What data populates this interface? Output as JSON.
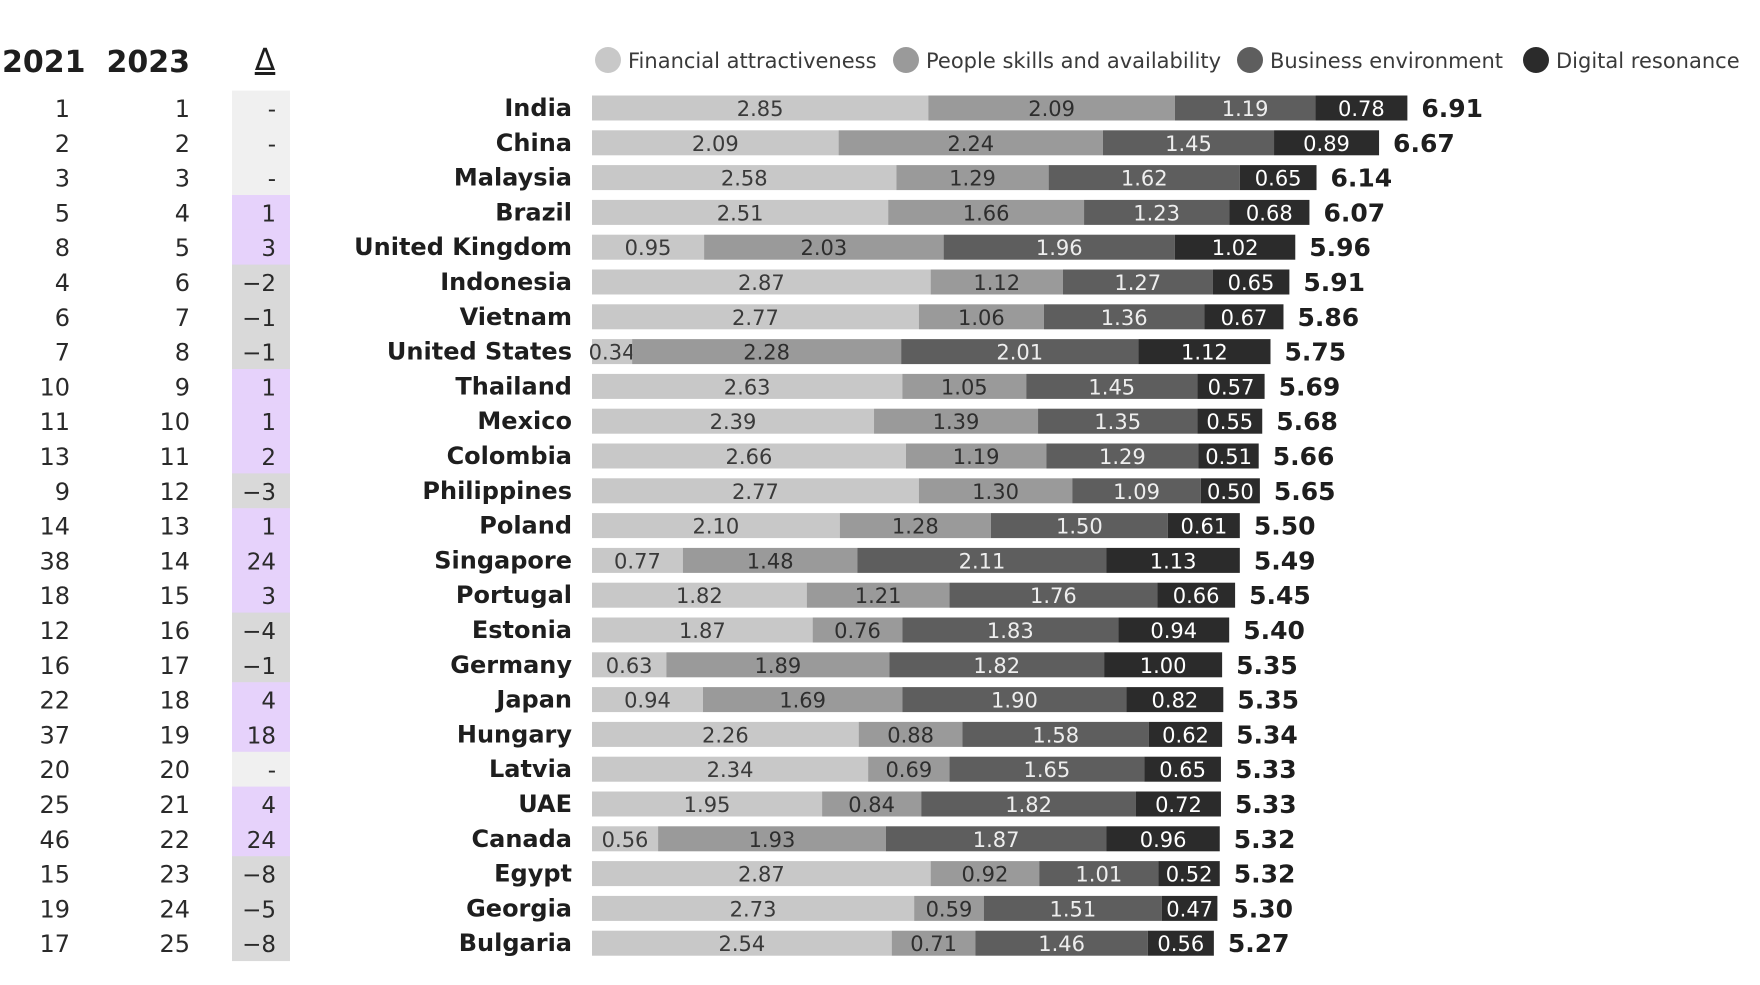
{
  "chart_data": {
    "type": "bar",
    "orientation": "horizontal",
    "stacked": true,
    "grid": false,
    "legend_position": "top",
    "column_headers": {
      "rank_2021": "2021",
      "rank_2023": "2023",
      "delta": "Δ"
    },
    "series": [
      {
        "name": "Financial attractiveness",
        "color": "#c8c8c8",
        "text_color": "#3a3a3a",
        "values": [
          2.85,
          2.09,
          2.58,
          2.51,
          0.95,
          2.87,
          2.77,
          0.34,
          2.63,
          2.39,
          2.66,
          2.77,
          2.1,
          0.77,
          1.82,
          1.87,
          0.63,
          0.94,
          2.26,
          2.34,
          1.95,
          0.56,
          2.87,
          2.73,
          2.54
        ]
      },
      {
        "name": "People skills and availability",
        "color": "#9a9a9a",
        "text_color": "#2e2e2e",
        "values": [
          2.09,
          2.24,
          1.29,
          1.66,
          2.03,
          1.12,
          1.06,
          2.28,
          1.05,
          1.39,
          1.19,
          1.3,
          1.28,
          1.48,
          1.21,
          0.76,
          1.89,
          1.69,
          0.88,
          0.69,
          0.84,
          1.93,
          0.92,
          0.59,
          0.71
        ]
      },
      {
        "name": "Business environment",
        "color": "#5e5e5e",
        "text_color": "#eeeeee",
        "values": [
          1.19,
          1.45,
          1.62,
          1.23,
          1.96,
          1.27,
          1.36,
          2.01,
          1.45,
          1.35,
          1.29,
          1.09,
          1.5,
          2.11,
          1.76,
          1.83,
          1.82,
          1.9,
          1.58,
          1.65,
          1.82,
          1.87,
          1.01,
          1.51,
          1.46
        ]
      },
      {
        "name": "Digital resonance",
        "color": "#2b2b2b",
        "text_color": "#ffffff",
        "values": [
          0.78,
          0.89,
          0.65,
          0.68,
          1.02,
          0.65,
          0.67,
          1.12,
          0.57,
          0.55,
          0.51,
          0.5,
          0.61,
          1.13,
          0.66,
          0.94,
          1.0,
          0.82,
          0.62,
          0.65,
          0.72,
          0.96,
          0.52,
          0.47,
          0.56
        ]
      }
    ],
    "rows": [
      {
        "country": "India",
        "rank_2021": "1",
        "rank_2023": "1",
        "delta": "-",
        "total": "6.91"
      },
      {
        "country": "China",
        "rank_2021": "2",
        "rank_2023": "2",
        "delta": "-",
        "total": "6.67"
      },
      {
        "country": "Malaysia",
        "rank_2021": "3",
        "rank_2023": "3",
        "delta": "-",
        "total": "6.14"
      },
      {
        "country": "Brazil",
        "rank_2021": "5",
        "rank_2023": "4",
        "delta": "1",
        "total": "6.07"
      },
      {
        "country": "United Kingdom",
        "rank_2021": "8",
        "rank_2023": "5",
        "delta": "3",
        "total": "5.96"
      },
      {
        "country": "Indonesia",
        "rank_2021": "4",
        "rank_2023": "6",
        "delta": "−2",
        "total": "5.91"
      },
      {
        "country": "Vietnam",
        "rank_2021": "6",
        "rank_2023": "7",
        "delta": "−1",
        "total": "5.86"
      },
      {
        "country": "United States",
        "rank_2021": "7",
        "rank_2023": "8",
        "delta": "−1",
        "total": "5.75"
      },
      {
        "country": "Thailand",
        "rank_2021": "10",
        "rank_2023": "9",
        "delta": "1",
        "total": "5.69"
      },
      {
        "country": "Mexico",
        "rank_2021": "11",
        "rank_2023": "10",
        "delta": "1",
        "total": "5.68"
      },
      {
        "country": "Colombia",
        "rank_2021": "13",
        "rank_2023": "11",
        "delta": "2",
        "total": "5.66"
      },
      {
        "country": "Philippines",
        "rank_2021": "9",
        "rank_2023": "12",
        "delta": "−3",
        "total": "5.65"
      },
      {
        "country": "Poland",
        "rank_2021": "14",
        "rank_2023": "13",
        "delta": "1",
        "total": "5.50"
      },
      {
        "country": "Singapore",
        "rank_2021": "38",
        "rank_2023": "14",
        "delta": "24",
        "total": "5.49"
      },
      {
        "country": "Portugal",
        "rank_2021": "18",
        "rank_2023": "15",
        "delta": "3",
        "total": "5.45"
      },
      {
        "country": "Estonia",
        "rank_2021": "12",
        "rank_2023": "16",
        "delta": "−4",
        "total": "5.40"
      },
      {
        "country": "Germany",
        "rank_2021": "16",
        "rank_2023": "17",
        "delta": "−1",
        "total": "5.35"
      },
      {
        "country": "Japan",
        "rank_2021": "22",
        "rank_2023": "18",
        "delta": "4",
        "total": "5.35"
      },
      {
        "country": "Hungary",
        "rank_2021": "37",
        "rank_2023": "19",
        "delta": "18",
        "total": "5.34"
      },
      {
        "country": "Latvia",
        "rank_2021": "20",
        "rank_2023": "20",
        "delta": "-",
        "total": "5.33"
      },
      {
        "country": "UAE",
        "rank_2021": "25",
        "rank_2023": "21",
        "delta": "4",
        "total": "5.33"
      },
      {
        "country": "Canada",
        "rank_2021": "46",
        "rank_2023": "22",
        "delta": "24",
        "total": "5.32"
      },
      {
        "country": "Egypt",
        "rank_2021": "15",
        "rank_2023": "23",
        "delta": "−8",
        "total": "5.32"
      },
      {
        "country": "Georgia",
        "rank_2021": "19",
        "rank_2023": "24",
        "delta": "−5",
        "total": "5.30"
      },
      {
        "country": "Bulgaria",
        "rank_2021": "17",
        "rank_2023": "25",
        "delta": "−8",
        "total": "5.27"
      }
    ],
    "delta_colors": {
      "up": "#e6d2fb",
      "down": "#d9d9d9",
      "same": "#f0f0f0"
    },
    "xlim": [
      0,
      7
    ]
  }
}
